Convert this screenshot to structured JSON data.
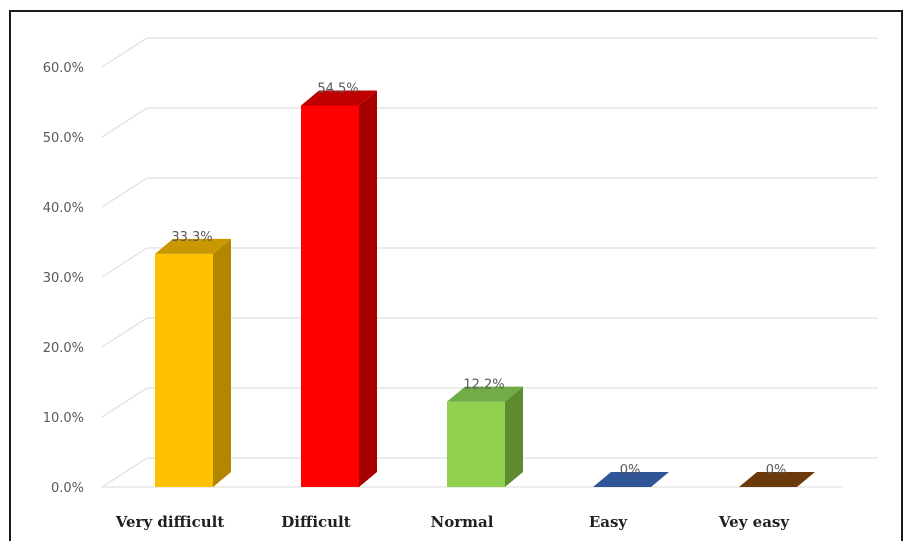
{
  "chart_data": {
    "type": "bar",
    "title": "",
    "xlabel": "",
    "ylabel": "",
    "categories": [
      "Very difficult",
      "Difficult",
      "Normal",
      "Easy",
      "Vey easy"
    ],
    "values": [
      33.3,
      54.5,
      12.2,
      0,
      0
    ],
    "data_labels": [
      "33.3%",
      "54.5%",
      "12.2%",
      "0%",
      "0%"
    ],
    "colors": [
      "#FFC000",
      "#FF0000",
      "#92D050",
      "#2F5597",
      "#6B3A0A"
    ],
    "side_colors": [
      "#B38600",
      "#A80000",
      "#5E8B30",
      "#1F3A66",
      "#4A2806"
    ],
    "top_colors": [
      "#C99800",
      "#C00000",
      "#70AD47",
      "#2F5597",
      "#5A2F06"
    ],
    "yticks": [
      "0.0%",
      "10.0%",
      "20.0%",
      "30.0%",
      "40.0%",
      "50.0%",
      "60.0%"
    ],
    "ylim": [
      0,
      65
    ],
    "grid": true,
    "legend": "none",
    "style": "3d-column"
  }
}
